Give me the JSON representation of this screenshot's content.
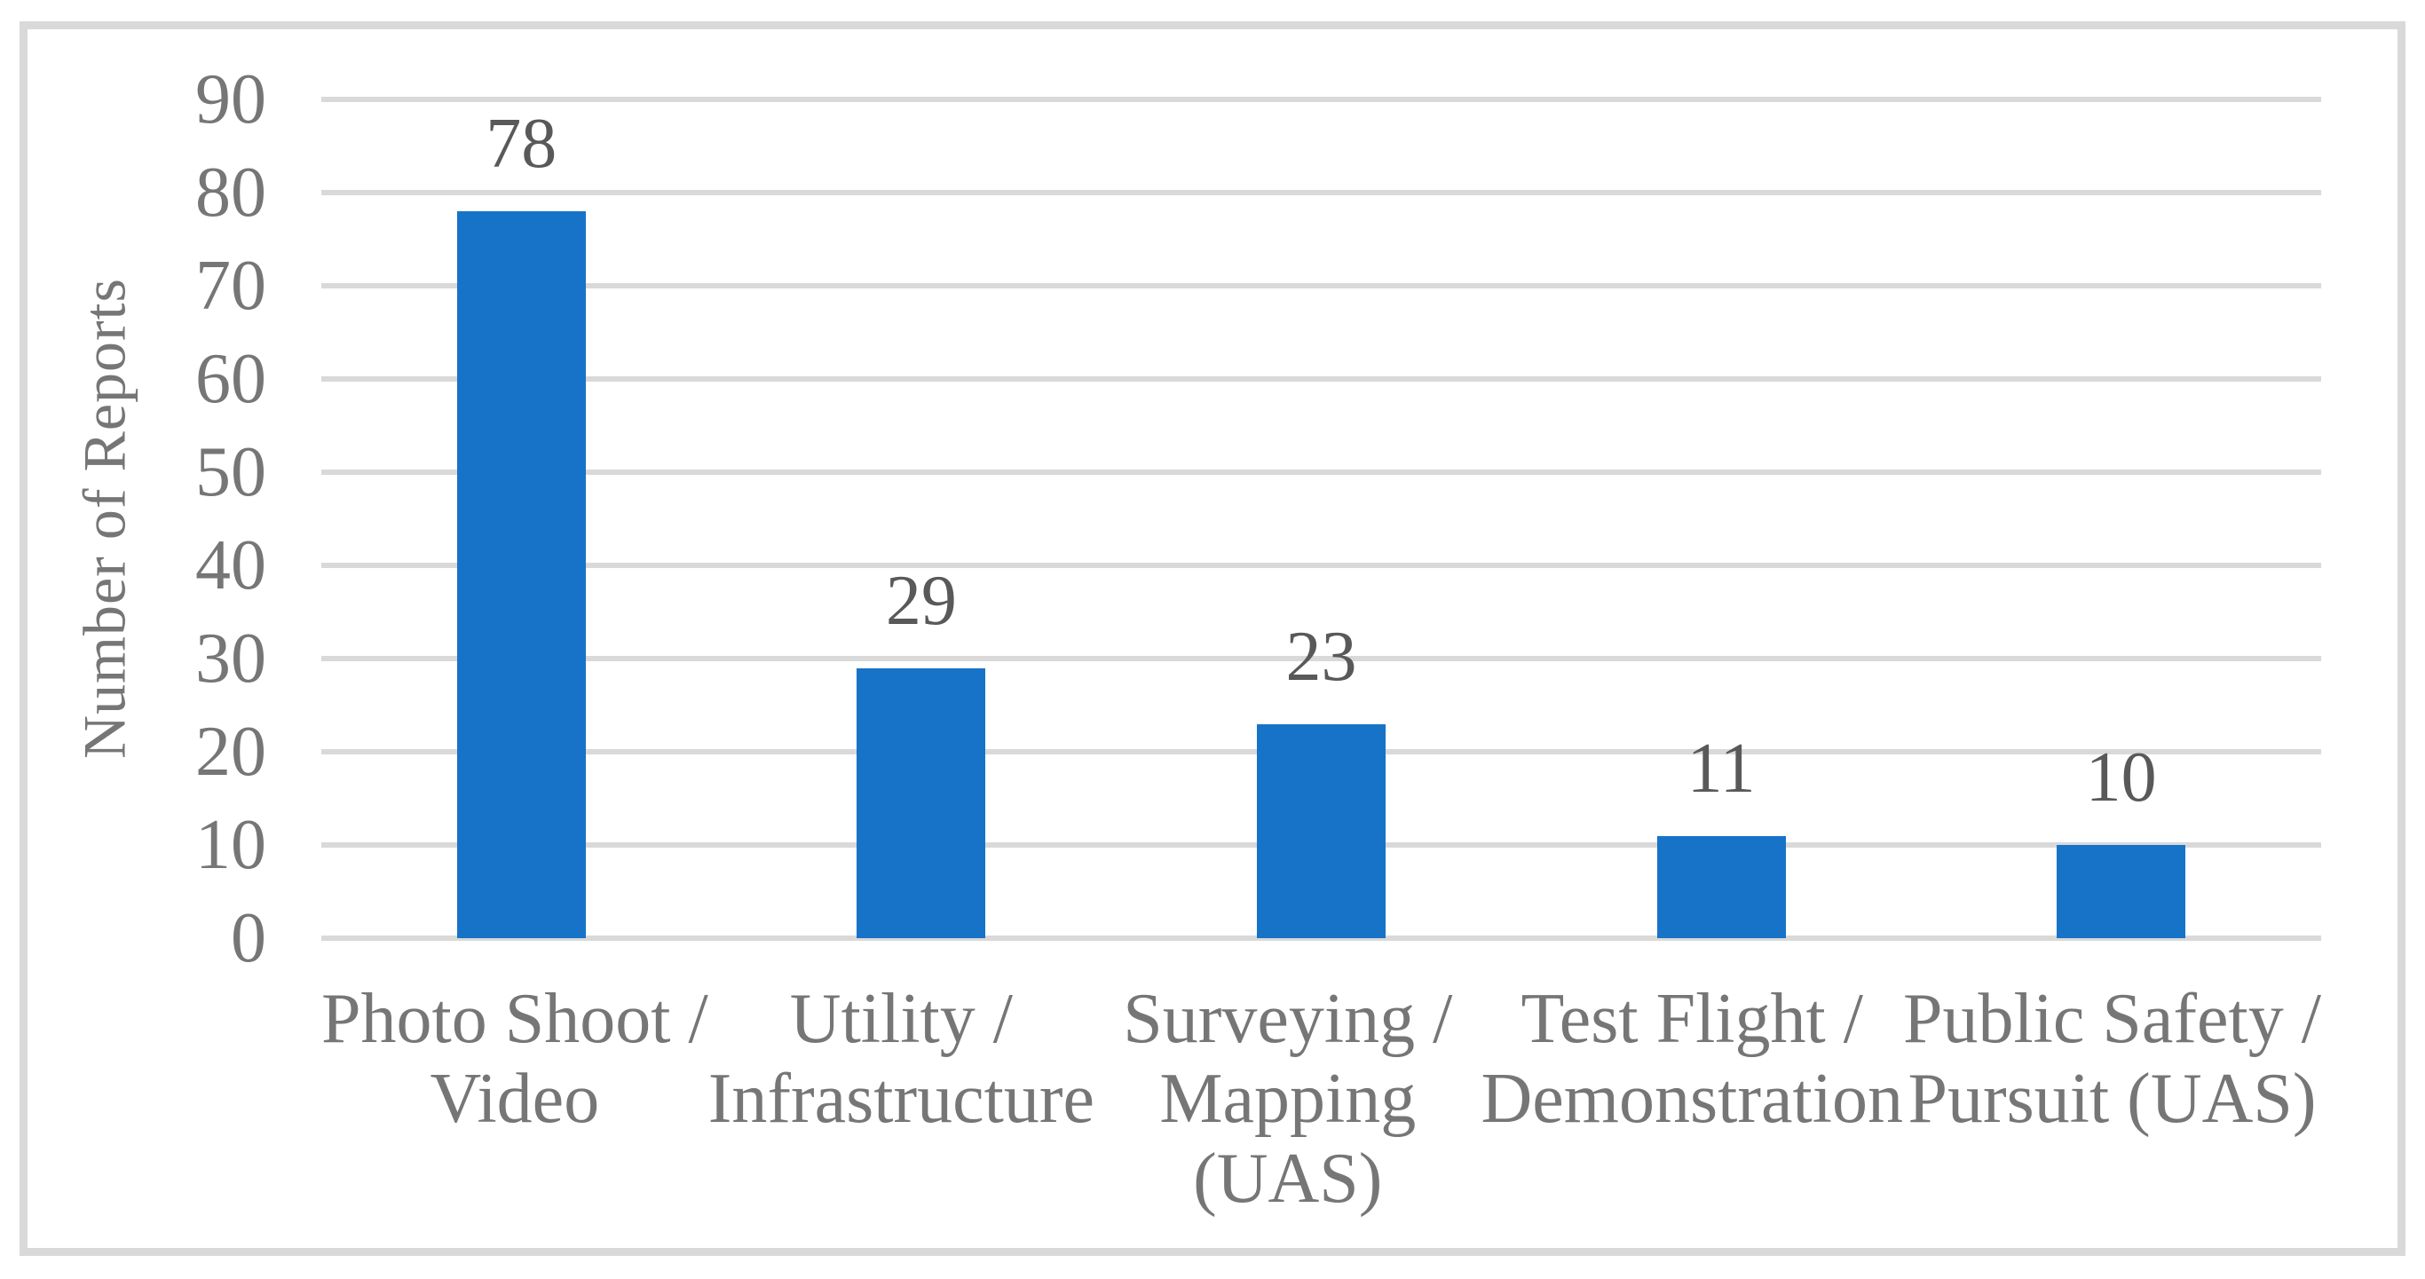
{
  "chart_data": {
    "type": "bar",
    "title": "",
    "categories": [
      "Photo Shoot / Video",
      "Utility / Infrastructure",
      "Surveying / Mapping (UAS)",
      "Test Flight / Demonstration",
      "Public Safety / Pursuit (UAS)"
    ],
    "category_lines": [
      [
        "Photo Shoot /",
        "Video"
      ],
      [
        "Utility /",
        "Infrastructure"
      ],
      [
        "Surveying /",
        "Mapping",
        "(UAS)"
      ],
      [
        "Test Flight /",
        "Demonstration"
      ],
      [
        "Public Safety /",
        "Pursuit (UAS)"
      ]
    ],
    "values": [
      78,
      29,
      23,
      11,
      10
    ],
    "data_labels": [
      "78",
      "29",
      "23",
      "11",
      "10"
    ],
    "xlabel": "",
    "ylabel": "Number of Reports",
    "ylim": [
      0,
      90
    ],
    "ytick_step": 10,
    "yticks": [
      "90",
      "80",
      "70",
      "60",
      "50",
      "40",
      "30",
      "20",
      "10",
      "0"
    ],
    "grid": "horizontal-only",
    "legend": "none",
    "colors": {
      "bar": "#1773C8",
      "gridline": "#D9D9D9",
      "border": "#D9D9D9",
      "axis_text": "#767676",
      "data_label_text": "#595959",
      "background": "#FFFFFF"
    }
  }
}
